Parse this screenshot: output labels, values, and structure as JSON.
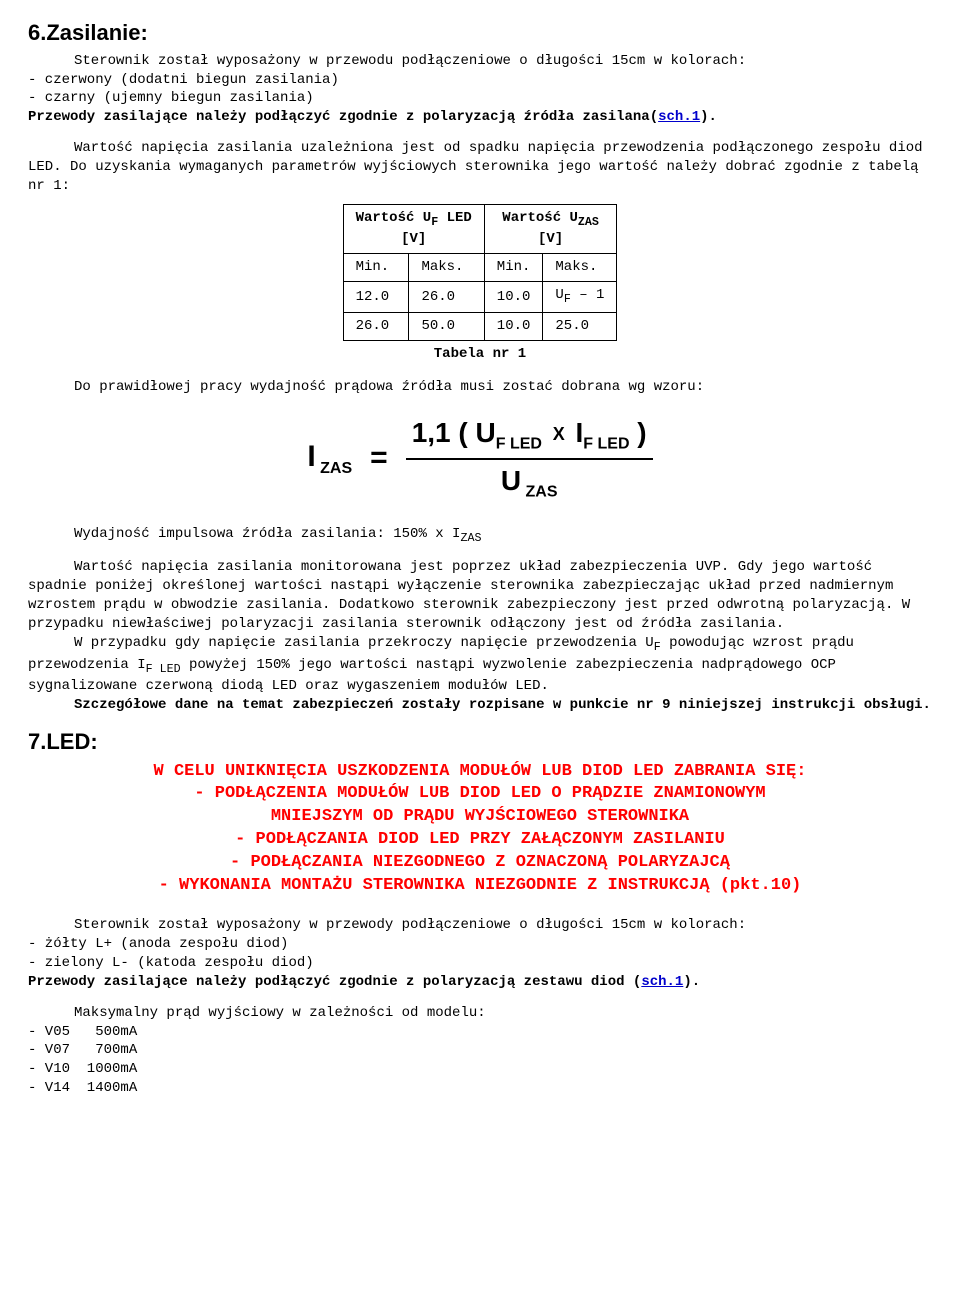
{
  "s6": {
    "title": "6.Zasilanie:",
    "intro1": "Sterownik został wyposażony w przewodu podłączeniowe o długości 15cm w kolorach:",
    "bullet1": "- czerwony (dodatni biegun zasilania)",
    "bullet2": "- czarny (ujemny biegun zasilania)",
    "note1_a": "Przewody zasilające należy podłączyć zgodnie z polaryzacją źródła zasilana(",
    "note1_link": "sch.1",
    "note1_b": ").",
    "para2": "Wartość napięcia zasilania uzależniona jest od spadku napięcia przewodzenia podłączonego zespołu diod LED. Do uzyskania wymaganych parametrów wyjściowych sterownika jego wartość należy dobrać zgodnie z tabelą nr 1:",
    "table": {
      "header1": "Wartość Uᴝ LED\n[V]",
      "header2": "Wartość Uᴢᴀs\n[V]",
      "header1_html": "Wartość U<sub>F</sub> LED<br>[V]",
      "header2_html": "Wartość U<sub>ZAS</sub><br>[V]",
      "sub_min": "Min.",
      "sub_max": "Maks.",
      "rows": [
        [
          "12.0",
          "26.0",
          "10.0",
          "U<sub>F</sub> – 1"
        ],
        [
          "26.0",
          "50.0",
          "10.0",
          "25.0"
        ]
      ],
      "caption": "Tabela nr 1"
    },
    "para3": "Do prawidłowej pracy wydajność prądowa źródła musi zostać dobrana wg wzoru:",
    "formula": {
      "lhs_html": "I<sub>&nbsp;ZAS</sub>",
      "num_html": "1,1 ( U<sub>F LED</sub> <span class=\"mult\">X</span> I<sub>F LED</sub> )",
      "den_html": "U<sub>&nbsp;ZAS</sub>"
    },
    "para4_html": "Wydajność impulsowa źródła zasilania: 150% x I<sub>ZAS</sub>",
    "para5": "Wartość napięcia zasilania monitorowana jest poprzez układ zabezpieczenia UVP. Gdy jego wartość spadnie poniżej określonej wartości nastąpi wyłączenie sterownika zabezpieczając układ przed nadmiernym wzrostem prądu w obwodzie zasilania. Dodatkowo sterownik zabezpieczony jest przed odwrotną polaryzacją. W przypadku niewłaściwej polaryzacji zasilania sterownik odłączony jest od źródła zasilania.",
    "para6_html": "W przypadku gdy napięcie zasilania przekroczy napięcie przewodzenia U<sub>F</sub> powodując wzrost prądu przewodzenia I<sub>F LED</sub> powyżej 150% jego wartości nastąpi wyzwolenie zabezpieczenia nadprądowego OCP sygnalizowane czerwoną diodą LED oraz wygaszeniem modułów LED.",
    "para7": "Szczegółowe dane na temat zabezpieczeń zostały rozpisane w punkcie nr 9 niniejszej instrukcji obsługi."
  },
  "s7": {
    "title": "7.LED:",
    "warning": {
      "l1": "W CELU UNIKNIĘCIA USZKODZENIA MODUŁÓW LUB DIOD LED ZABRANIA SIĘ:",
      "l2": "- PODŁĄCZENIA MODUŁÓW LUB DIOD LED O PRĄDZIE ZNAMIONOWYM",
      "l3": "MNIEJSZYM OD PRĄDU WYJŚCIOWEGO STEROWNIKA",
      "l4": "- PODŁĄCZANIA DIOD LED PRZY ZAŁĄCZONYM ZASILANIU",
      "l5": "- PODŁĄCZANIA NIEZGODNEGO Z OZNACZONĄ POLARYZAJCĄ",
      "l6": "- WYKONANIA MONTAŻU STEROWNIKA NIEZGODNIE Z INSTRUKCJĄ (pkt.10)"
    },
    "para1": "Sterownik został wyposażony w przewody podłączeniowe o długości 15cm w kolorach:",
    "bullet1": "- żółty L+ (anoda zespołu diod)",
    "bullet2": "- zielony L- (katoda zespołu diod)",
    "note_a": "Przewody zasilające należy podłączyć zgodnie z polaryzacją zestawu diod (",
    "note_link": "sch.1",
    "note_b": ").",
    "para2": "Maksymalny prąd wyjściowy w zależności od modelu:",
    "models": [
      "- V05   500mA",
      "- V07   700mA",
      "- V10  1000mA",
      "- V14  1400mA"
    ]
  }
}
